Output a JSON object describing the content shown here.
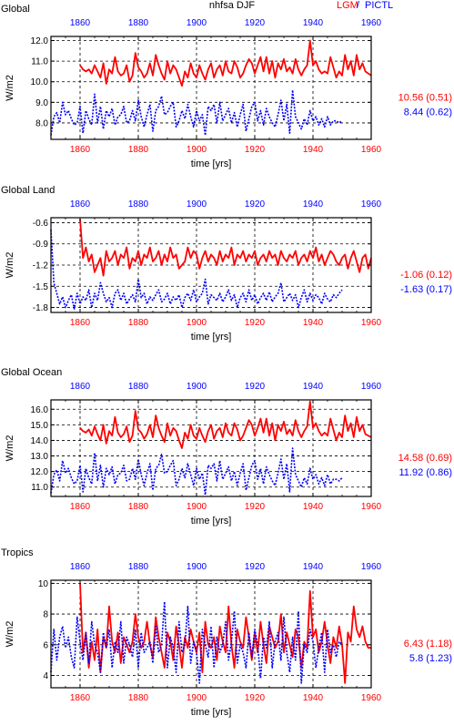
{
  "colors": {
    "lgm": "#ff0000",
    "pictl": "#0000ff",
    "axis": "#000000",
    "grid": "#000000"
  },
  "header": {
    "title": "nhfsa DJF",
    "legend_lgm": "LGM",
    "legend_sep": "/",
    "legend_pictl": "PICTL"
  },
  "chart_data": [
    {
      "type": "line",
      "title": "Global",
      "xlabel": "time [yrs]",
      "ylabel": "W/m2",
      "xlim": [
        1850,
        1960
      ],
      "ylim": [
        7.2,
        12.2
      ],
      "xticks": [
        1860,
        1880,
        1900,
        1920,
        1940,
        1960
      ],
      "yticks": [
        8.0,
        9.0,
        10.0,
        11.0,
        12.0
      ],
      "ytick_labels": [
        "8.0",
        "9.0",
        "10.0",
        "11.0",
        "12.0"
      ],
      "grid": true,
      "series": [
        {
          "name": "LGM",
          "color": "#ff0000",
          "dash": "solid",
          "stat": "10.56 (0.51)",
          "x_start": 1860,
          "values": [
            10.8,
            10.6,
            10.5,
            10.6,
            10.4,
            10.8,
            10.5,
            10.2,
            10.9,
            9.9,
            10.6,
            10.4,
            11.2,
            10.5,
            10.3,
            10.4,
            10.8,
            10.0,
            10.3,
            11.4,
            10.7,
            10.5,
            10.2,
            10.4,
            10.9,
            10.3,
            11.3,
            10.8,
            10.4,
            10.1,
            11.0,
            10.4,
            10.8,
            10.6,
            10.2,
            9.8,
            10.5,
            10.2,
            10.9,
            10.4,
            10.2,
            10.8,
            10.4,
            10.1,
            10.6,
            10.9,
            10.2,
            10.6,
            10.8,
            10.3,
            11.0,
            10.5,
            10.4,
            11.0,
            10.7,
            10.2,
            10.4,
            10.8,
            11.1,
            10.9,
            10.4,
            10.8,
            11.2,
            10.5,
            11.2,
            10.4,
            11.0,
            10.2,
            10.9,
            10.6,
            11.1,
            10.5,
            10.7,
            10.4,
            11.1,
            10.6,
            10.3,
            10.6,
            10.8,
            12.0,
            10.8,
            11.0,
            10.6,
            10.4,
            10.5,
            10.4,
            11.2,
            10.7,
            10.2,
            10.5,
            10.3,
            11.3,
            10.6,
            11.0,
            10.3,
            11.3,
            10.6,
            10.9,
            10.5,
            10.4,
            10.3
          ]
        },
        {
          "name": "PICTL",
          "color": "#0000ff",
          "dash": "dotted",
          "stat": "8.44 (0.62)",
          "x_start": 1850,
          "values": [
            7.4,
            8.3,
            8.5,
            8.0,
            9.0,
            8.4,
            8.6,
            8.2,
            7.9,
            8.0,
            8.8,
            7.5,
            8.6,
            8.2,
            7.9,
            9.4,
            8.0,
            8.8,
            7.7,
            8.6,
            8.3,
            8.7,
            7.9,
            8.3,
            8.4,
            8.8,
            8.0,
            8.1,
            8.6,
            8.1,
            9.1,
            8.3,
            7.8,
            8.4,
            8.9,
            7.6,
            8.6,
            8.8,
            9.3,
            8.4,
            8.5,
            8.8,
            9.0,
            7.8,
            8.1,
            8.6,
            8.2,
            8.9,
            8.3,
            7.8,
            8.6,
            8.1,
            8.4,
            7.4,
            8.8,
            8.6,
            8.9,
            8.0,
            9.0,
            8.1,
            8.4,
            8.7,
            8.0,
            8.5,
            7.8,
            8.4,
            8.9,
            7.6,
            8.2,
            8.8,
            9.0,
            8.1,
            8.6,
            7.9,
            8.7,
            8.3,
            8.0,
            7.8,
            8.4,
            9.1,
            8.1,
            8.9,
            7.5,
            9.6,
            8.3,
            8.0,
            7.7,
            8.2,
            7.9,
            8.6,
            8.1,
            8.3,
            7.9,
            8.2,
            7.8,
            8.3,
            7.9,
            8.1,
            8.1,
            8.0,
            8.1
          ]
        }
      ]
    },
    {
      "type": "line",
      "title": "Global Land",
      "xlabel": "time [yrs]",
      "ylabel": "W/m2",
      "xlim": [
        1850,
        1960
      ],
      "ylim": [
        -1.87,
        -0.53
      ],
      "xticks": [
        1860,
        1880,
        1900,
        1920,
        1940,
        1960
      ],
      "yticks": [
        -1.8,
        -1.5,
        -1.2,
        -0.9,
        -0.6
      ],
      "ytick_labels": [
        "-1.8",
        "-1.5",
        "-1.2",
        "-0.9",
        "-0.6"
      ],
      "grid": true,
      "series": [
        {
          "name": "LGM",
          "color": "#ff0000",
          "dash": "solid",
          "stat": "-1.06 (0.12)",
          "x_start": 1860,
          "values": [
            -0.55,
            -1.1,
            -0.95,
            -1.15,
            -1.05,
            -1.3,
            -1.2,
            -1.1,
            -1.35,
            -1.0,
            -1.15,
            -1.1,
            -1.0,
            -1.2,
            -1.05,
            -1.1,
            -0.95,
            -1.25,
            -1.1,
            -1.15,
            -1.0,
            -1.2,
            -1.05,
            -1.1,
            -0.95,
            -1.15,
            -1.1,
            -1.0,
            -1.2,
            -1.05,
            -1.15,
            -0.95,
            -1.1,
            -1.05,
            -1.25,
            -1.2,
            -1.15,
            -0.95,
            -1.1,
            -1.0,
            -1.05,
            -1.25,
            -1.1,
            -1.0,
            -1.15,
            -1.05,
            -1.1,
            -1.2,
            -1.0,
            -1.15,
            -1.05,
            -1.1,
            -0.95,
            -1.2,
            -1.05,
            -1.1,
            -1.0,
            -1.15,
            -1.05,
            -1.1,
            -1.0,
            -1.2,
            -1.1,
            -1.05,
            -1.15,
            -1.0,
            -1.1,
            -1.05,
            -1.2,
            -1.0,
            -1.1,
            -1.15,
            -1.05,
            -1.1,
            -1.0,
            -1.2,
            -1.1,
            -1.05,
            -1.15,
            -1.0,
            -1.1,
            -0.95,
            -1.15,
            -1.05,
            -1.2,
            -1.1,
            -1.0,
            -1.05,
            -1.15,
            -1.2,
            -1.1,
            -1.05,
            -1.25,
            -1.1,
            -1.0,
            -1.15,
            -1.3,
            -1.1,
            -1.05,
            -1.25,
            -1.1
          ]
        },
        {
          "name": "PICTL",
          "color": "#0000ff",
          "dash": "dotted",
          "stat": "-1.63 (0.17)",
          "x_start": 1850,
          "values": [
            -0.7,
            -1.45,
            -1.6,
            -1.75,
            -1.65,
            -1.8,
            -1.7,
            -1.62,
            -1.82,
            -1.6,
            -1.75,
            -1.65,
            -1.7,
            -1.55,
            -1.8,
            -1.6,
            -1.7,
            -1.45,
            -1.6,
            -1.72,
            -1.66,
            -1.8,
            -1.6,
            -1.55,
            -1.7,
            -1.6,
            -1.75,
            -1.68,
            -1.62,
            -1.72,
            -1.4,
            -1.66,
            -1.6,
            -1.75,
            -1.65,
            -1.7,
            -1.62,
            -1.55,
            -1.72,
            -1.68,
            -1.6,
            -1.75,
            -1.65,
            -1.7,
            -1.62,
            -1.8,
            -1.66,
            -1.6,
            -1.7,
            -1.55,
            -1.72,
            -1.65,
            -1.6,
            -1.4,
            -1.75,
            -1.62,
            -1.66,
            -1.7,
            -1.6,
            -1.72,
            -1.65,
            -1.55,
            -1.7,
            -1.62,
            -1.8,
            -1.66,
            -1.6,
            -1.72,
            -1.55,
            -1.7,
            -1.62,
            -1.75,
            -1.66,
            -1.6,
            -1.7,
            -1.58,
            -1.72,
            -1.65,
            -1.6,
            -1.45,
            -1.72,
            -1.66,
            -1.6,
            -1.7,
            -1.62,
            -1.8,
            -1.66,
            -1.55,
            -1.72,
            -1.6,
            -1.7,
            -1.62,
            -1.66,
            -1.75,
            -1.6,
            -1.68,
            -1.72,
            -1.62,
            -1.66,
            -1.6,
            -1.55
          ]
        }
      ]
    },
    {
      "type": "line",
      "title": "Global Ocean",
      "xlabel": "time [yrs]",
      "ylabel": "W/m2",
      "xlim": [
        1850,
        1960
      ],
      "ylim": [
        10.4,
        16.6
      ],
      "xticks": [
        1860,
        1880,
        1900,
        1920,
        1940,
        1960
      ],
      "yticks": [
        11.0,
        12.0,
        13.0,
        14.0,
        15.0,
        16.0
      ],
      "ytick_labels": [
        "11.0",
        "12.0",
        "13.0",
        "14.0",
        "15.0",
        "16.0"
      ],
      "grid": true,
      "series": [
        {
          "name": "LGM",
          "color": "#ff0000",
          "dash": "solid",
          "stat": "14.58 (0.69)",
          "x_start": 1860,
          "values": [
            14.8,
            14.6,
            14.5,
            14.7,
            14.3,
            14.9,
            14.4,
            14.0,
            15.0,
            13.8,
            14.6,
            14.3,
            15.5,
            14.5,
            14.2,
            14.4,
            14.9,
            13.9,
            14.3,
            15.9,
            14.7,
            14.5,
            14.1,
            14.4,
            15.0,
            14.2,
            15.6,
            14.8,
            14.3,
            13.9,
            15.1,
            14.3,
            14.8,
            14.6,
            14.0,
            13.5,
            14.5,
            14.1,
            15.0,
            14.3,
            14.1,
            14.8,
            14.3,
            13.9,
            14.6,
            15.0,
            14.1,
            14.6,
            14.8,
            14.2,
            15.1,
            14.5,
            14.3,
            15.1,
            14.7,
            14.0,
            14.3,
            14.8,
            15.3,
            15.0,
            14.3,
            14.8,
            15.4,
            14.5,
            15.4,
            14.3,
            15.1,
            14.0,
            15.0,
            14.6,
            15.2,
            14.4,
            14.7,
            14.3,
            15.3,
            14.6,
            14.2,
            14.6,
            14.9,
            16.5,
            14.8,
            15.1,
            14.6,
            14.3,
            14.5,
            14.3,
            15.4,
            14.7,
            14.0,
            14.5,
            14.2,
            15.6,
            14.6,
            15.1,
            14.2,
            15.5,
            14.6,
            15.0,
            14.4,
            14.3,
            14.2
          ]
        },
        {
          "name": "PICTL",
          "color": "#0000ff",
          "dash": "dotted",
          "stat": "11.92 (0.86)",
          "x_start": 1850,
          "values": [
            10.6,
            11.8,
            12.1,
            11.4,
            12.7,
            11.9,
            12.2,
            11.6,
            11.2,
            11.4,
            12.4,
            10.7,
            12.2,
            11.6,
            11.2,
            13.2,
            11.4,
            12.4,
            11.0,
            12.2,
            11.8,
            12.3,
            11.2,
            11.8,
            11.9,
            12.4,
            11.4,
            11.5,
            12.2,
            11.5,
            12.8,
            11.8,
            11.1,
            11.9,
            12.5,
            10.8,
            12.2,
            12.4,
            13.1,
            11.9,
            12.0,
            12.4,
            12.7,
            11.1,
            11.5,
            12.2,
            11.6,
            12.5,
            11.8,
            11.1,
            12.2,
            11.5,
            11.9,
            10.5,
            12.4,
            12.2,
            12.5,
            11.4,
            12.7,
            11.5,
            11.9,
            12.3,
            11.4,
            12.0,
            11.1,
            11.9,
            12.5,
            10.8,
            11.6,
            12.4,
            12.7,
            11.5,
            12.2,
            11.2,
            12.3,
            11.8,
            11.4,
            11.1,
            11.9,
            12.8,
            11.5,
            12.5,
            10.7,
            13.5,
            11.8,
            11.4,
            11.0,
            11.6,
            11.2,
            12.2,
            11.5,
            11.8,
            11.2,
            11.6,
            11.1,
            11.8,
            11.2,
            11.5,
            11.5,
            11.4,
            11.6
          ]
        }
      ]
    },
    {
      "type": "line",
      "title": "Tropics",
      "xlabel": "time [yrs]",
      "ylabel": "W/m2",
      "xlim": [
        1850,
        1960
      ],
      "ylim": [
        3.2,
        10.2
      ],
      "xticks": [
        1860,
        1880,
        1900,
        1920,
        1940,
        1960
      ],
      "yticks": [
        4,
        6,
        8,
        10
      ],
      "ytick_labels": [
        "4",
        "6",
        "8",
        "10"
      ],
      "grid": true,
      "series": [
        {
          "name": "LGM",
          "color": "#ff0000",
          "dash": "solid",
          "stat": "6.43 (1.18)",
          "x_start": 1860,
          "values": [
            10.0,
            5.5,
            6.8,
            4.5,
            6.2,
            5.0,
            7.0,
            4.2,
            6.5,
            5.8,
            8.5,
            6.2,
            5.5,
            6.8,
            4.8,
            6.5,
            6.0,
            5.5,
            6.2,
            8.0,
            6.5,
            5.8,
            6.2,
            7.5,
            6.0,
            5.2,
            7.8,
            6.5,
            5.5,
            4.5,
            6.8,
            6.2,
            5.0,
            7.2,
            6.0,
            4.5,
            6.5,
            5.8,
            7.0,
            6.2,
            5.5,
            6.8,
            4.2,
            7.5,
            6.0,
            5.8,
            6.5,
            5.0,
            7.2,
            6.2,
            5.5,
            8.5,
            6.0,
            4.5,
            7.0,
            6.2,
            5.8,
            7.8,
            6.5,
            5.0,
            6.8,
            5.5,
            7.5,
            6.0,
            4.8,
            7.2,
            6.5,
            5.8,
            6.2,
            8.0,
            5.5,
            6.8,
            6.0,
            5.2,
            7.0,
            6.5,
            4.5,
            6.2,
            5.8,
            9.5,
            6.5,
            7.0,
            5.5,
            6.2,
            7.5,
            6.0,
            4.8,
            6.5,
            5.8,
            7.2,
            6.0,
            3.5,
            6.8,
            6.2,
            8.5,
            7.0,
            6.5,
            7.2,
            6.2,
            5.8,
            5.8
          ]
        },
        {
          "name": "PICTL",
          "color": "#0000ff",
          "dash": "dotted",
          "stat": "5.8 (1.23)",
          "x_start": 1850,
          "values": [
            4.2,
            7.0,
            5.0,
            6.5,
            7.2,
            5.8,
            6.5,
            5.2,
            4.5,
            7.8,
            6.2,
            5.0,
            6.8,
            4.8,
            7.5,
            6.0,
            5.5,
            4.2,
            6.8,
            5.8,
            7.0,
            4.5,
            6.2,
            5.5,
            7.5,
            4.8,
            6.5,
            6.0,
            5.2,
            7.0,
            4.5,
            6.8,
            5.5,
            5.8,
            6.2,
            4.8,
            7.2,
            5.5,
            6.0,
            8.8,
            4.5,
            6.5,
            5.8,
            4.2,
            7.5,
            5.5,
            6.0,
            8.5,
            4.8,
            6.2,
            5.5,
            3.5,
            7.0,
            6.0,
            5.2,
            7.2,
            4.5,
            6.5,
            5.5,
            6.0,
            7.5,
            5.0,
            6.2,
            8.2,
            4.8,
            6.0,
            5.5,
            4.5,
            6.8,
            5.2,
            7.0,
            6.0,
            3.8,
            6.5,
            5.8,
            7.5,
            4.5,
            6.2,
            6.8,
            5.0,
            7.8,
            5.5,
            4.2,
            6.5,
            5.0,
            8.2,
            3.5,
            6.0,
            5.5,
            7.0,
            6.2,
            4.5,
            5.8,
            6.8,
            4.2,
            7.0,
            5.5,
            6.0,
            5.2,
            6.2,
            6.0
          ]
        }
      ]
    }
  ]
}
